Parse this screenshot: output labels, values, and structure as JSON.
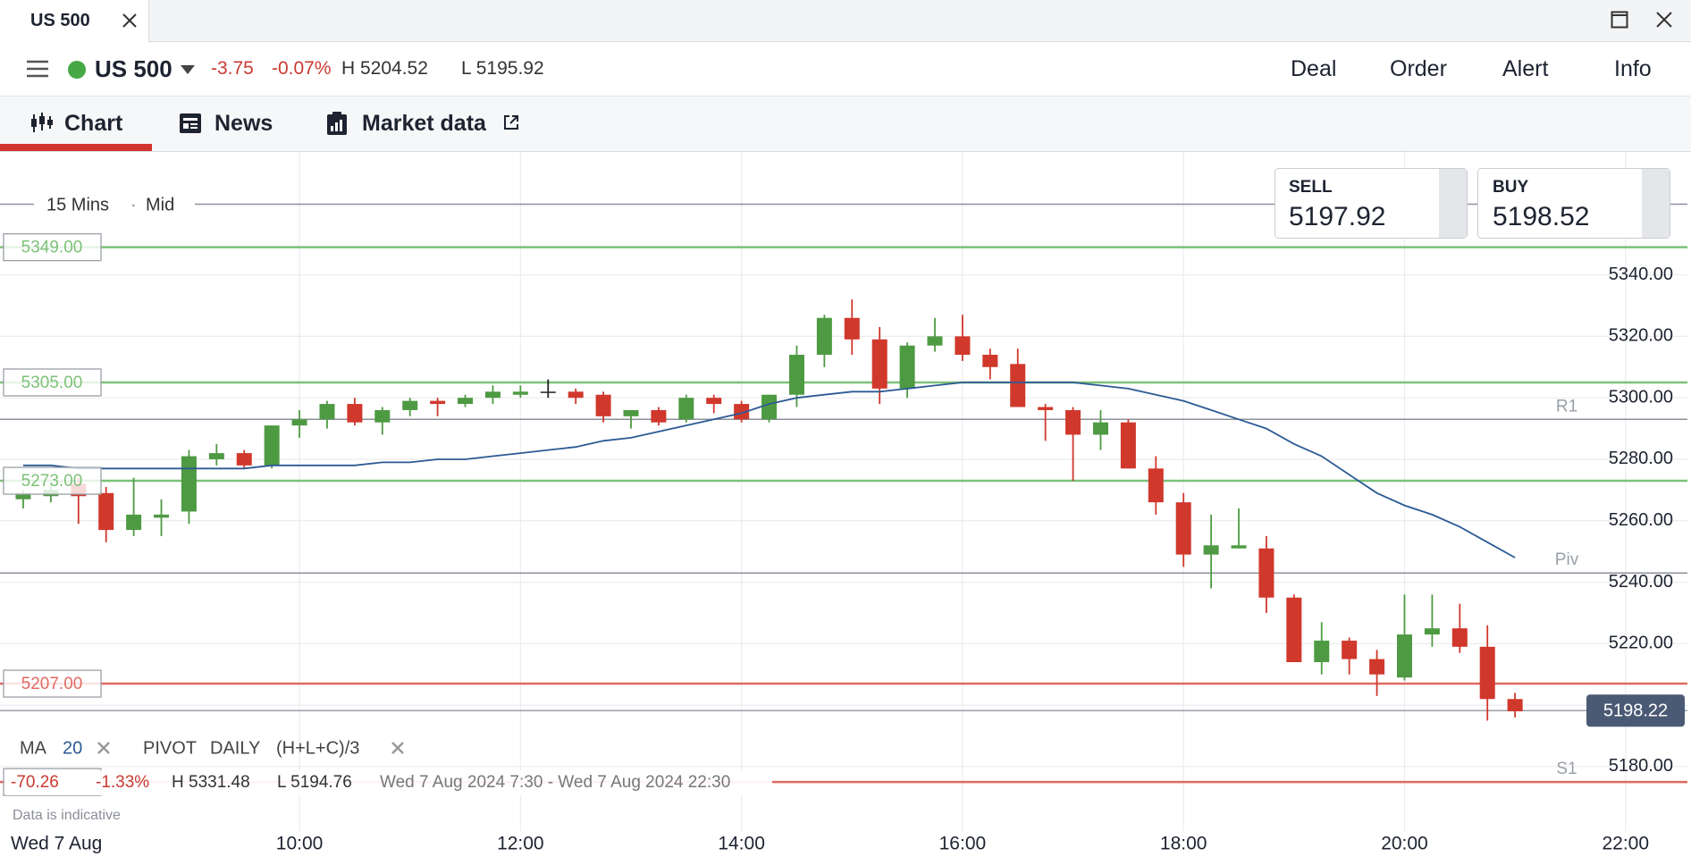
{
  "window": {
    "tab": "US 500"
  },
  "toolbar": {
    "name": "US 500",
    "change": "-3.75",
    "change_pct": "-0.07%",
    "high": "H 5204.52",
    "low": "L 5195.92",
    "actions": [
      "Deal",
      "Order",
      "Alert",
      "Info"
    ]
  },
  "nav": {
    "tabs": [
      "Chart",
      "News",
      "Market data"
    ]
  },
  "ticket": {
    "sell_label": "SELL",
    "sell": "5197.92",
    "buy_label": "BUY",
    "buy": "5198.52"
  },
  "chart_data": {
    "type": "candlestick",
    "timeframe": "15 Mins",
    "price_type": "Mid",
    "date_label": "Wed 7 Aug",
    "disclaimer": "Data is indicative",
    "x": [
      7.5,
      7.75,
      8,
      8.25,
      8.5,
      8.75,
      9,
      9.25,
      9.5,
      9.75,
      10,
      10.25,
      10.5,
      10.75,
      11,
      11.25,
      11.5,
      11.75,
      12,
      12.25,
      12.5,
      12.75,
      13,
      13.25,
      13.5,
      13.75,
      14,
      14.25,
      14.5,
      14.75,
      15,
      15.25,
      15.5,
      15.75,
      16,
      16.25,
      16.5,
      16.75,
      17,
      17.25,
      17.5,
      17.75,
      18,
      18.25,
      18.5,
      18.75,
      19,
      19.25,
      19.5,
      19.75,
      20,
      20.25,
      20.5,
      20.75,
      21
    ],
    "open": [
      5267,
      5268,
      5272,
      5269,
      5257,
      5261,
      5263,
      5280,
      5282,
      5278,
      5291,
      5293,
      5298,
      5292,
      5296,
      5299,
      5298,
      5300,
      5301,
      5302,
      5302,
      5301,
      5294,
      5296,
      5293,
      5300,
      5298,
      5293,
      5301,
      5314,
      5326,
      5319,
      5303,
      5317,
      5320,
      5314,
      5311,
      5297,
      5296,
      5288,
      5292,
      5277,
      5266,
      5249,
      5251,
      5251,
      5235,
      5214,
      5221,
      5215,
      5209,
      5223,
      5225,
      5219,
      5202
    ],
    "high": [
      5270,
      5272,
      5274,
      5271,
      5274,
      5267,
      5283,
      5285,
      5283,
      5291,
      5296,
      5299,
      5300,
      5297,
      5300,
      5300,
      5301,
      5304,
      5304,
      5306,
      5303,
      5302,
      5296,
      5297,
      5301,
      5301,
      5299,
      5301,
      5317,
      5327,
      5332,
      5323,
      5318,
      5326,
      5327,
      5316,
      5316,
      5298,
      5297,
      5296,
      5293,
      5281,
      5269,
      5262,
      5264,
      5255,
      5236,
      5227,
      5222,
      5218,
      5236,
      5236,
      5233,
      5226,
      5204
    ],
    "low": [
      5264,
      5266,
      5259,
      5253,
      5255,
      5255,
      5259,
      5278,
      5277,
      5277,
      5287,
      5290,
      5291,
      5288,
      5294,
      5294,
      5297,
      5298,
      5300,
      5300,
      5298,
      5292,
      5290,
      5291,
      5292,
      5295,
      5292,
      5292,
      5297,
      5310,
      5314,
      5298,
      5300,
      5315,
      5312,
      5306,
      5297,
      5286,
      5273,
      5283,
      5277,
      5262,
      5245,
      5238,
      5251,
      5230,
      5214,
      5210,
      5210,
      5203,
      5208,
      5219,
      5217,
      5195,
      5196
    ],
    "close": [
      5269,
      5270,
      5268,
      5257,
      5262,
      5262,
      5281,
      5282,
      5278,
      5291,
      5293,
      5298,
      5292,
      5296,
      5299,
      5298,
      5300,
      5302,
      5302,
      5302,
      5300,
      5294,
      5296,
      5292,
      5300,
      5298,
      5293,
      5301,
      5314,
      5326,
      5319,
      5303,
      5317,
      5320,
      5314,
      5310,
      5297,
      5296,
      5288,
      5292,
      5277,
      5266,
      5249,
      5252,
      5252,
      5235,
      5214,
      5221,
      5215,
      5210,
      5223,
      5225,
      5219,
      5202,
      5198
    ],
    "up_color": "#4e9a43",
    "down_color": "#d0382c",
    "doji_color": "#222222",
    "ma": {
      "name": "MA",
      "period": 20,
      "color": "#2c5a94",
      "values": [
        5278,
        5278,
        5277,
        5277,
        5277,
        5277,
        5277,
        5277,
        5277,
        5278,
        5278,
        5278,
        5278,
        5279,
        5279,
        5280,
        5280,
        5281,
        5282,
        5283,
        5284,
        5286,
        5287,
        5289,
        5291,
        5293,
        5295,
        5298,
        5300,
        5301,
        5302,
        5302,
        5303,
        5304,
        5305,
        5305,
        5305,
        5305,
        5305,
        5304,
        5303,
        5301,
        5299,
        5296,
        5293,
        5290,
        5285,
        5281,
        5275,
        5269,
        5265,
        5262,
        5258,
        5253,
        5248
      ]
    },
    "pivot_legend": {
      "name": "PIVOT",
      "period": "DAILY",
      "formula": "(H+L+C)/3"
    },
    "pivots": [
      {
        "value": 5363
      },
      {
        "name": "R1",
        "value": 5293
      },
      {
        "name": "Piv",
        "value": 5243
      },
      {
        "name": "S1",
        "value": 5175
      }
    ],
    "pivot_color": "#8c9099",
    "levels": [
      {
        "value": 5349,
        "label": "5349.00",
        "color": "#7cc178"
      },
      {
        "value": 5305,
        "label": "5305.00",
        "color": "#7cc178"
      },
      {
        "value": 5273,
        "label": "5273.00",
        "color": "#7cc178"
      },
      {
        "value": 5207,
        "label": "5207.00",
        "color": "#e06a62"
      },
      {
        "value": 5175,
        "color": "#e06a62"
      }
    ],
    "last": 5198.22,
    "summary": {
      "change": "-70.26",
      "change_pct": "-1.33%",
      "high": "H 5331.48",
      "low": "L 5194.76",
      "range": "Wed 7 Aug 2024 7:30 - Wed 7 Aug 2024 22:30"
    },
    "xlim": [
      7.29,
      22.56
    ],
    "ylim": [
      5148,
      5380
    ],
    "xticks": [
      {
        "value": 10,
        "label": "10:00"
      },
      {
        "value": 12,
        "label": "12:00"
      },
      {
        "value": 14,
        "label": "14:00"
      },
      {
        "value": 16,
        "label": "16:00"
      },
      {
        "value": 18,
        "label": "18:00"
      },
      {
        "value": 20,
        "label": "20:00"
      },
      {
        "value": 22,
        "label": "22:00"
      }
    ],
    "yticks": [
      {
        "value": 5180,
        "label": "5180.00"
      },
      {
        "value": 5200,
        "label": "5200.00"
      },
      {
        "value": 5220,
        "label": "5220.00"
      },
      {
        "value": 5240,
        "label": "5240.00"
      },
      {
        "value": 5260,
        "label": "5260.00"
      },
      {
        "value": 5280,
        "label": "5280.00"
      },
      {
        "value": 5300,
        "label": "5300.00"
      },
      {
        "value": 5320,
        "label": "5320.00"
      },
      {
        "value": 5340,
        "label": "5340.00"
      }
    ],
    "grid": true
  }
}
